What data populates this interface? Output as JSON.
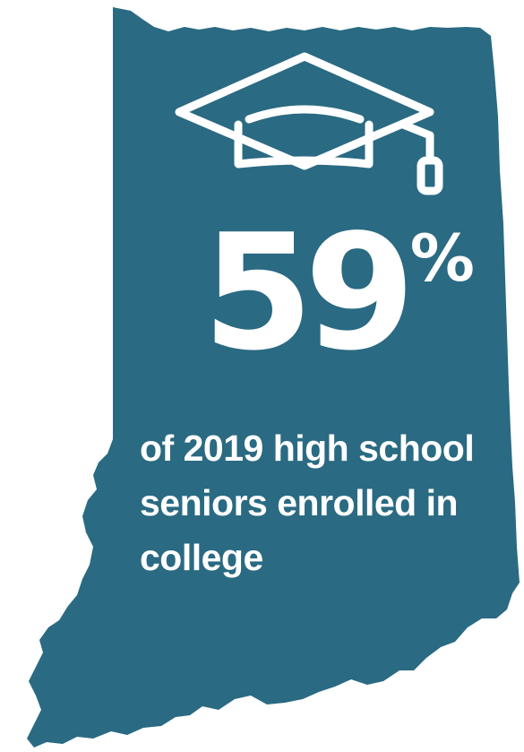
{
  "colors": {
    "state_fill": "#2a6a82",
    "text": "#ffffff",
    "background": "#ffffff"
  },
  "icon": "graduation-cap-icon",
  "stat": {
    "number": "59",
    "unit": "%"
  },
  "caption": {
    "line1": "of 2019 high school",
    "line2": "seniors enrolled in",
    "line3": "college"
  }
}
